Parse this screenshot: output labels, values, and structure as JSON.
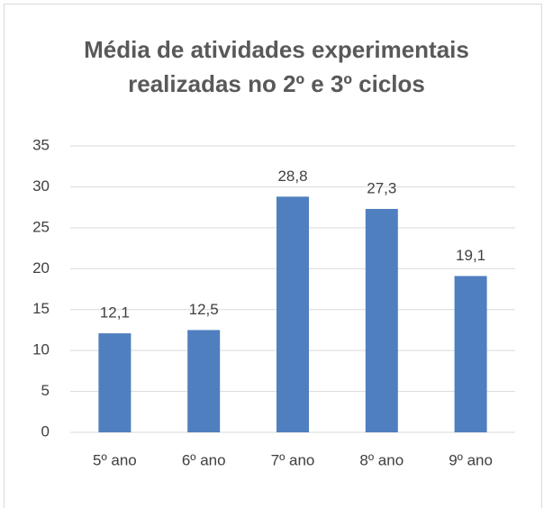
{
  "chart_data": {
    "type": "bar",
    "title": "Média de atividades experimentais realizadas no 2º e 3º ciclos",
    "categories": [
      "5º ano",
      "6º ano",
      "7º ano",
      "8º ano",
      "9º ano"
    ],
    "values": [
      12.1,
      12.5,
      28.8,
      27.3,
      19.1
    ],
    "value_labels": [
      "12,1",
      "12,5",
      "28,8",
      "27,3",
      "19,1"
    ],
    "color": "#4f7fbf",
    "ylim": [
      0,
      35
    ],
    "yticks": [
      0,
      5,
      10,
      15,
      20,
      25,
      30,
      35
    ],
    "grid": true
  }
}
